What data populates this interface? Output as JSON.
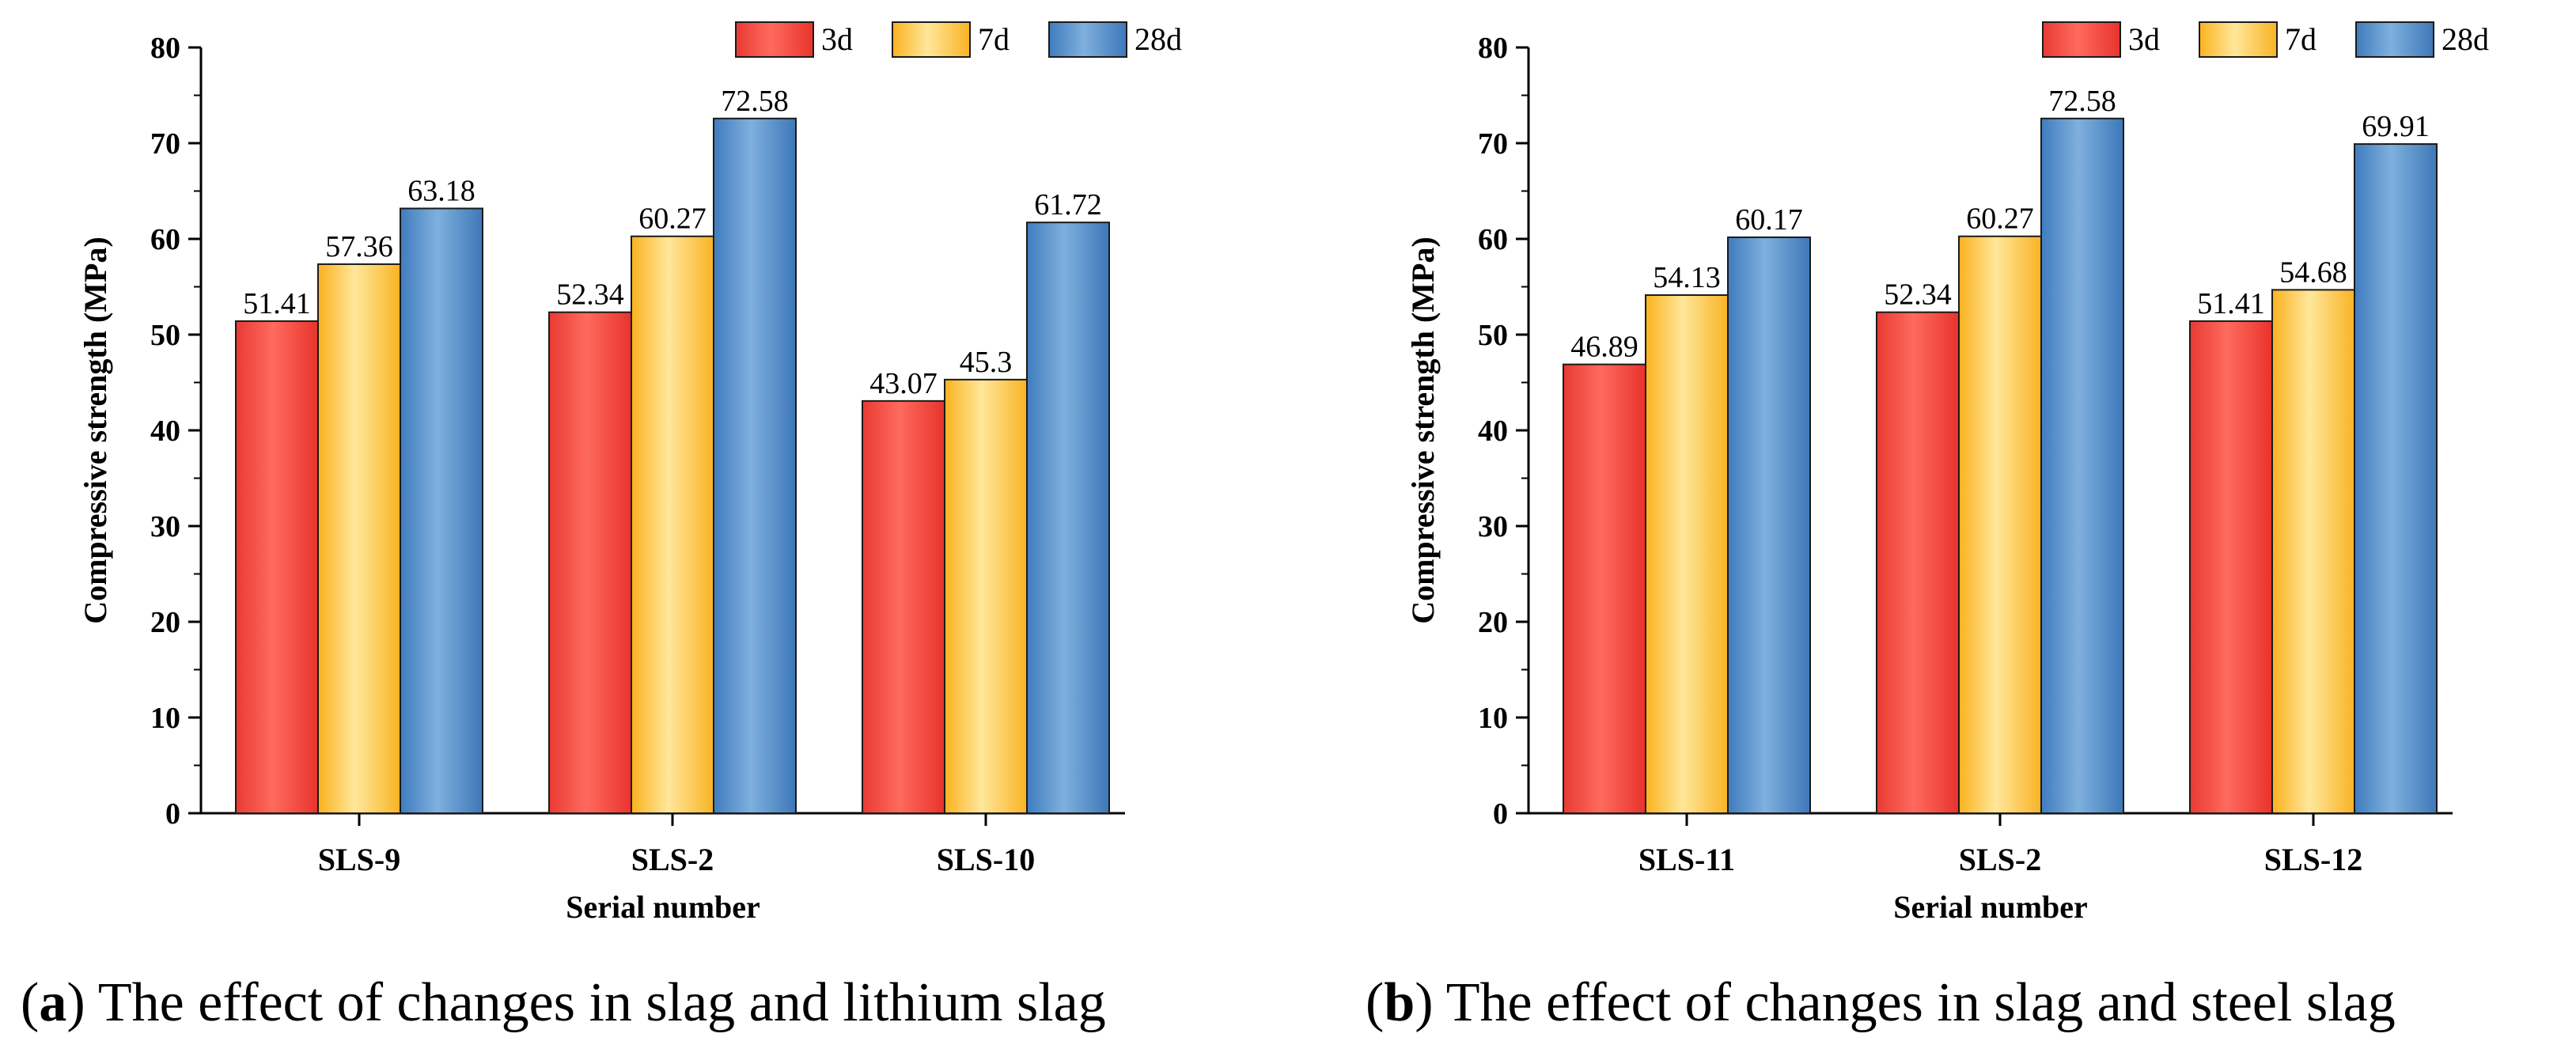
{
  "colors": {
    "3d": "#f1403a",
    "7d": "#fdbd2c",
    "28d": "#4f8ac5"
  },
  "captions": [
    {
      "letter": "a",
      "text": "The effect of changes in slag and lithium slag"
    },
    {
      "letter": "b",
      "text": "The effect of changes in slag and steel slag"
    }
  ],
  "chart_data": [
    {
      "type": "bar",
      "categories": [
        "SLS-9",
        "SLS-2",
        "SLS-10"
      ],
      "series": [
        {
          "name": "3d",
          "values": [
            51.41,
            52.34,
            43.07
          ]
        },
        {
          "name": "7d",
          "values": [
            57.36,
            60.27,
            45.3
          ]
        },
        {
          "name": "28d",
          "values": [
            63.18,
            72.58,
            61.72
          ]
        }
      ],
      "data_labels": [
        [
          "51.41",
          "52.34",
          "43.07"
        ],
        [
          "57.36",
          "60.27",
          "45.3"
        ],
        [
          "63.18",
          "72.58",
          "61.72"
        ]
      ],
      "xlabel": "Serial number",
      "ylabel": "Compressive strength (MPa)",
      "ylim": [
        0,
        80
      ],
      "yticks": [
        "0",
        "10",
        "20",
        "30",
        "40",
        "50",
        "60",
        "70",
        "80"
      ],
      "legend_placement": "top-right",
      "grid": false
    },
    {
      "type": "bar",
      "categories": [
        "SLS-11",
        "SLS-2",
        "SLS-12"
      ],
      "series": [
        {
          "name": "3d",
          "values": [
            46.89,
            52.34,
            51.41
          ]
        },
        {
          "name": "7d",
          "values": [
            54.13,
            60.27,
            54.68
          ]
        },
        {
          "name": "28d",
          "values": [
            60.17,
            72.58,
            69.91
          ]
        }
      ],
      "data_labels": [
        [
          "46.89",
          "52.34",
          "51.41"
        ],
        [
          "54.13",
          "60.27",
          "54.68"
        ],
        [
          "60.17",
          "72.58",
          "69.91"
        ]
      ],
      "xlabel": "Serial number",
      "ylabel": "Compressive strength (MPa)",
      "ylim": [
        0,
        80
      ],
      "yticks": [
        "0",
        "10",
        "20",
        "30",
        "40",
        "50",
        "60",
        "70",
        "80"
      ],
      "legend_placement": "top-right",
      "grid": false
    }
  ]
}
